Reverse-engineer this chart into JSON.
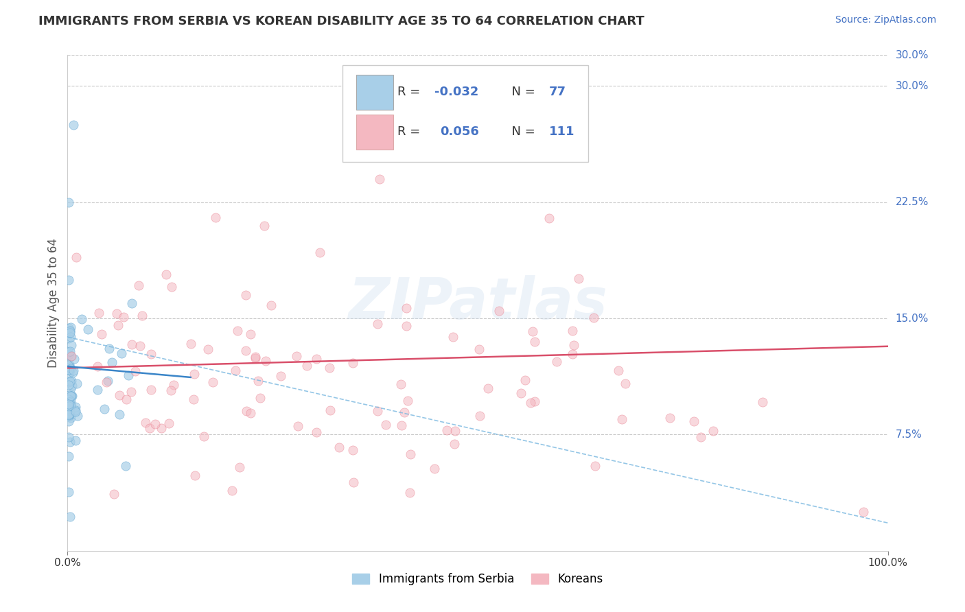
{
  "title": "IMMIGRANTS FROM SERBIA VS KOREAN DISABILITY AGE 35 TO 64 CORRELATION CHART",
  "source": "Source: ZipAtlas.com",
  "ylabel": "Disability Age 35 to 64",
  "ytick_labels": [
    "7.5%",
    "15.0%",
    "22.5%",
    "30.0%"
  ],
  "ytick_values": [
    0.075,
    0.15,
    0.225,
    0.3
  ],
  "xlim": [
    0.0,
    1.0
  ],
  "ylim": [
    0.0,
    0.32
  ],
  "legend_label1": "Immigrants from Serbia",
  "legend_label2": "Koreans",
  "R1": -0.032,
  "N1": 77,
  "R2": 0.056,
  "N2": 111,
  "color_blue": "#a8cfe8",
  "color_blue_edge": "#6aaad4",
  "color_pink": "#f4b8c1",
  "color_pink_edge": "#e87a8a",
  "color_trendline_blue": "#3a85c8",
  "color_trendline_pink": "#d94f6a",
  "color_trendline_dashed": "#7ab8e0",
  "background_color": "#ffffff",
  "watermark": "ZIPatlas",
  "trendline_pink_x0": 0.0,
  "trendline_pink_y0": 0.118,
  "trendline_pink_x1": 1.0,
  "trendline_pink_y1": 0.132,
  "trendline_blue_x0": 0.0,
  "trendline_blue_y0": 0.119,
  "trendline_blue_x1": 0.15,
  "trendline_blue_y1": 0.112,
  "trendline_dash_x0": 0.0,
  "trendline_dash_y0": 0.138,
  "trendline_dash_x1": 1.0,
  "trendline_dash_y1": 0.018
}
